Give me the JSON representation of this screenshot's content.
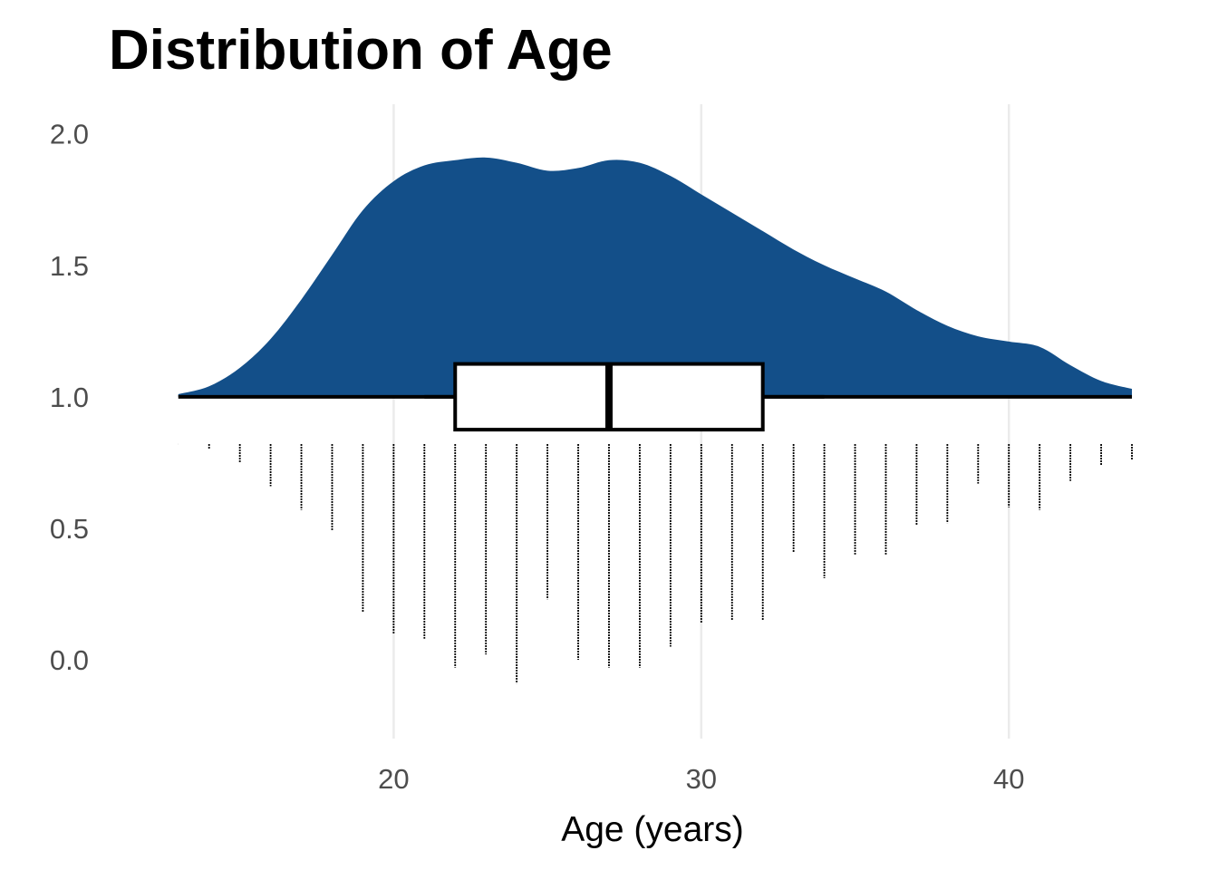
{
  "chart_data": {
    "type": "raincloud",
    "title": "Distribution of Age",
    "xlabel": "Age (years)",
    "ylabel": "",
    "xlim": [
      12.3,
      44.5
    ],
    "ylim": [
      -0.3,
      2.13
    ],
    "x_ticks": [
      20,
      30,
      40
    ],
    "x_tick_labels": [
      "20",
      "30",
      "40"
    ],
    "y_ticks": [
      0.0,
      0.5,
      1.0,
      1.5,
      2.0
    ],
    "y_tick_labels": [
      "0.0",
      "0.5",
      "1.0",
      "1.5",
      "2.0"
    ],
    "grid": "vertical major gridlines only",
    "colors": {
      "density_fill": "#134f89",
      "box_fill": "#ffffff",
      "outline": "#000000",
      "grid": "#ebebeb"
    },
    "density": {
      "baseline": 1.0,
      "points": [
        [
          13,
          1.01
        ],
        [
          14,
          1.04
        ],
        [
          15,
          1.11
        ],
        [
          16,
          1.22
        ],
        [
          17,
          1.37
        ],
        [
          18,
          1.54
        ],
        [
          19,
          1.71
        ],
        [
          20,
          1.82
        ],
        [
          21,
          1.88
        ],
        [
          22,
          1.9
        ],
        [
          23,
          1.91
        ],
        [
          24,
          1.89
        ],
        [
          25,
          1.86
        ],
        [
          26,
          1.87
        ],
        [
          27,
          1.9
        ],
        [
          28,
          1.89
        ],
        [
          29,
          1.84
        ],
        [
          30,
          1.77
        ],
        [
          31,
          1.7
        ],
        [
          32,
          1.63
        ],
        [
          33,
          1.56
        ],
        [
          34,
          1.5
        ],
        [
          35,
          1.45
        ],
        [
          36,
          1.4
        ],
        [
          37,
          1.33
        ],
        [
          38,
          1.27
        ],
        [
          39,
          1.23
        ],
        [
          40,
          1.21
        ],
        [
          41,
          1.19
        ],
        [
          42,
          1.12
        ],
        [
          43,
          1.06
        ],
        [
          44,
          1.03
        ]
      ]
    },
    "boxplot": {
      "center_y": 1.0,
      "q1": 22,
      "median": 27,
      "q3": 32,
      "whisker_low": 21,
      "whisker_high": 34,
      "box_half_height": 0.125
    },
    "rain_lines": {
      "top_y": 0.82,
      "bottom_y": [
        0.82,
        0.8,
        0.75,
        0.66,
        0.57,
        0.49,
        0.18,
        0.1,
        0.08,
        -0.03,
        0.02,
        -0.09,
        0.23,
        0.0,
        -0.03,
        -0.03,
        0.05,
        0.14,
        0.15,
        0.15,
        0.41,
        0.31,
        0.4,
        0.4,
        0.51,
        0.52,
        0.67,
        0.58,
        0.57,
        0.68,
        0.74,
        0.76
      ],
      "x_start": 13,
      "x_step": 1
    }
  }
}
